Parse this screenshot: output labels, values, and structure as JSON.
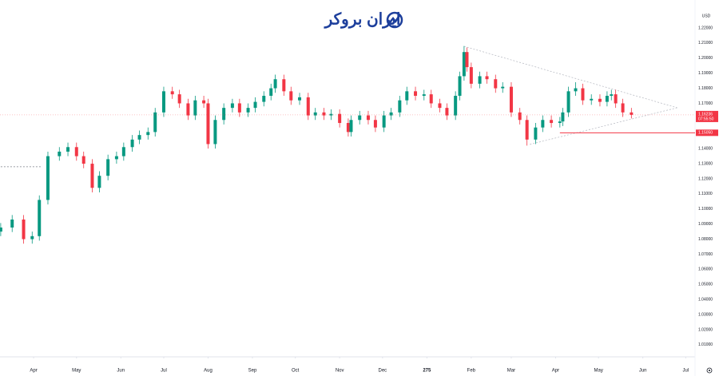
{
  "watermark": "ایران بروکر",
  "chart_data": {
    "type": "candlestick",
    "currency": "USD",
    "up_color": "#089981",
    "down_color": "#f23645",
    "grid": false,
    "xlim": [
      -23.5,
      462.5
    ],
    "ylim": [
      1.002,
      1.2385
    ],
    "xticks": [
      {
        "value": 0,
        "label": "Apr"
      },
      {
        "value": 30,
        "label": "May"
      },
      {
        "value": 61,
        "label": "Jun"
      },
      {
        "value": 91,
        "label": "Jul"
      },
      {
        "value": 122,
        "label": "Aug"
      },
      {
        "value": 153,
        "label": "Sep"
      },
      {
        "value": 183,
        "label": "Oct"
      },
      {
        "value": 214,
        "label": "Nov"
      },
      {
        "value": 244,
        "label": "Dec"
      },
      275,
      {
        "value": 306,
        "label": "Feb"
      },
      {
        "value": 334,
        "label": "Mar"
      },
      {
        "value": 365,
        "label": "Apr"
      },
      {
        "value": 395,
        "label": "May"
      },
      {
        "value": 426,
        "label": "Jun"
      },
      {
        "value": 456,
        "label": "Jul"
      }
    ],
    "yticks": [
      {
        "value": 1.22,
        "label": "1.22000"
      },
      {
        "value": 1.21,
        "label": "1.21000"
      },
      {
        "value": 1.2,
        "label": "1.20000"
      },
      {
        "value": 1.19,
        "label": "1.19000"
      },
      {
        "value": 1.18,
        "label": "1.18000"
      },
      {
        "value": 1.17,
        "label": "1.17000"
      },
      {
        "value": 1.16,
        "label": "1.16000"
      },
      {
        "value": 1.15,
        "label": "1.15000"
      },
      {
        "value": 1.14,
        "label": "1.14000"
      },
      {
        "value": 1.13,
        "label": "1.13000"
      },
      {
        "value": 1.12,
        "label": "1.12000"
      },
      {
        "value": 1.11,
        "label": "1.11000"
      },
      {
        "value": 1.1,
        "label": "1.10000"
      },
      {
        "value": 1.09,
        "label": "1.09000"
      },
      {
        "value": 1.08,
        "label": "1.08000"
      },
      {
        "value": 1.07,
        "label": "1.07000"
      },
      {
        "value": 1.06,
        "label": "1.06000"
      },
      {
        "value": 1.05,
        "label": "1.05000"
      },
      {
        "value": 1.04,
        "label": "1.04000"
      },
      {
        "value": 1.03,
        "label": "1.03000"
      },
      {
        "value": 1.02,
        "label": "1.02000"
      },
      {
        "value": 1.01,
        "label": "1.01000"
      }
    ],
    "x": [
      -23,
      -15,
      -7,
      -1,
      4,
      10,
      18,
      24,
      30,
      35,
      41,
      46,
      52,
      58,
      63,
      69,
      74,
      80,
      85,
      91,
      97,
      102,
      108,
      113,
      119,
      122,
      127,
      133,
      139,
      144,
      150,
      155,
      161,
      166,
      169,
      175,
      180,
      186,
      192,
      197,
      203,
      208,
      214,
      220,
      222,
      228,
      234,
      239,
      245,
      250,
      256,
      261,
      267,
      273,
      278,
      284,
      289,
      295,
      298,
      301,
      303,
      306,
      312,
      317,
      323,
      328,
      334,
      340,
      345,
      351,
      356,
      362,
      368,
      370,
      374,
      379,
      384,
      390,
      396,
      401,
      404,
      407,
      412,
      418
    ],
    "open": [
      1.085,
      1.0877,
      1.093,
      1.08,
      1.082,
      1.106,
      1.135,
      1.138,
      1.141,
      1.135,
      1.13,
      1.114,
      1.122,
      1.133,
      1.135,
      1.141,
      1.146,
      1.149,
      1.151,
      1.164,
      1.178,
      1.176,
      1.17,
      1.162,
      1.172,
      1.17,
      1.143,
      1.159,
      1.167,
      1.17,
      1.164,
      1.167,
      1.171,
      1.175,
      1.18,
      1.186,
      1.178,
      1.172,
      1.174,
      1.162,
      1.164,
      1.162,
      1.163,
      1.157,
      1.151,
      1.159,
      1.162,
      1.159,
      1.154,
      1.162,
      1.164,
      1.172,
      1.178,
      1.175,
      1.176,
      1.17,
      1.167,
      1.162,
      1.175,
      1.188,
      1.204,
      1.194,
      1.183,
      1.188,
      1.186,
      1.18,
      1.181,
      1.164,
      1.159,
      1.146,
      1.154,
      1.159,
      1.157,
      1.158,
      1.164,
      1.178,
      1.18,
      1.172,
      1.173,
      1.171,
      1.175,
      1.176,
      1.17,
      1.164
    ],
    "high": [
      1.0907,
      1.096,
      1.096,
      1.085,
      1.109,
      1.138,
      1.141,
      1.144,
      1.144,
      1.138,
      1.133,
      1.125,
      1.136,
      1.138,
      1.144,
      1.149,
      1.152,
      1.154,
      1.167,
      1.181,
      1.181,
      1.179,
      1.173,
      1.175,
      1.175,
      1.173,
      1.162,
      1.17,
      1.173,
      1.173,
      1.17,
      1.174,
      1.178,
      1.183,
      1.189,
      1.189,
      1.181,
      1.177,
      1.177,
      1.167,
      1.167,
      1.166,
      1.166,
      1.16,
      1.162,
      1.165,
      1.165,
      1.162,
      1.165,
      1.167,
      1.175,
      1.181,
      1.181,
      1.179,
      1.179,
      1.173,
      1.17,
      1.178,
      1.191,
      1.208,
      1.207,
      1.197,
      1.191,
      1.191,
      1.189,
      1.184,
      1.184,
      1.167,
      1.162,
      1.157,
      1.162,
      1.162,
      1.161,
      1.167,
      1.181,
      1.184,
      1.183,
      1.176,
      1.176,
      1.178,
      1.179,
      1.179,
      1.173,
      1.167
    ],
    "low": [
      1.082,
      1.0847,
      1.077,
      1.077,
      1.079,
      1.103,
      1.132,
      1.135,
      1.132,
      1.127,
      1.111,
      1.111,
      1.119,
      1.13,
      1.132,
      1.138,
      1.143,
      1.146,
      1.148,
      1.161,
      1.173,
      1.167,
      1.159,
      1.159,
      1.167,
      1.14,
      1.14,
      1.156,
      1.164,
      1.161,
      1.161,
      1.164,
      1.168,
      1.172,
      1.177,
      1.175,
      1.169,
      1.169,
      1.159,
      1.159,
      1.159,
      1.159,
      1.154,
      1.148,
      1.148,
      1.156,
      1.156,
      1.151,
      1.151,
      1.159,
      1.161,
      1.169,
      1.172,
      1.172,
      1.167,
      1.164,
      1.159,
      1.159,
      1.172,
      1.185,
      1.191,
      1.18,
      1.18,
      1.183,
      1.177,
      1.177,
      1.161,
      1.156,
      1.142,
      1.143,
      1.151,
      1.154,
      1.154,
      1.155,
      1.161,
      1.175,
      1.169,
      1.169,
      1.168,
      1.168,
      1.172,
      1.167,
      1.161,
      1.16
    ],
    "close": [
      1.0877,
      1.093,
      1.08,
      1.082,
      1.106,
      1.135,
      1.138,
      1.141,
      1.135,
      1.13,
      1.114,
      1.122,
      1.133,
      1.135,
      1.141,
      1.146,
      1.149,
      1.151,
      1.164,
      1.178,
      1.176,
      1.17,
      1.162,
      1.172,
      1.17,
      1.143,
      1.159,
      1.167,
      1.17,
      1.164,
      1.167,
      1.171,
      1.175,
      1.18,
      1.186,
      1.178,
      1.172,
      1.174,
      1.162,
      1.164,
      1.162,
      1.163,
      1.157,
      1.151,
      1.159,
      1.162,
      1.159,
      1.154,
      1.162,
      1.164,
      1.172,
      1.178,
      1.175,
      1.176,
      1.17,
      1.167,
      1.162,
      1.175,
      1.188,
      1.204,
      1.194,
      1.183,
      1.188,
      1.186,
      1.18,
      1.181,
      1.164,
      1.159,
      1.146,
      1.154,
      1.159,
      1.157,
      1.158,
      1.164,
      1.178,
      1.18,
      1.172,
      1.173,
      1.171,
      1.175,
      1.176,
      1.17,
      1.164,
      1.1624
    ],
    "trendlines": [
      {
        "x": [
          301,
          450
        ],
        "y": [
          1.2078,
          1.1671
        ],
        "color": "#b2b5be",
        "dash": true
      },
      {
        "x": [
          347,
          450
        ],
        "y": [
          1.1428,
          1.1671
        ],
        "color": "#b2b5be",
        "dash": true
      },
      {
        "x": [
          -23,
          6
        ],
        "y": [
          1.128,
          1.128
        ],
        "color": "#787b86",
        "dash": true
      }
    ],
    "hline": {
      "x": 368,
      "value": 1.1505,
      "label": "1.15050",
      "color": "#f23645"
    },
    "last_price": {
      "value": 1.16236,
      "label": "1.16236",
      "countdown": "07:55:50",
      "color": "#f23645"
    }
  }
}
